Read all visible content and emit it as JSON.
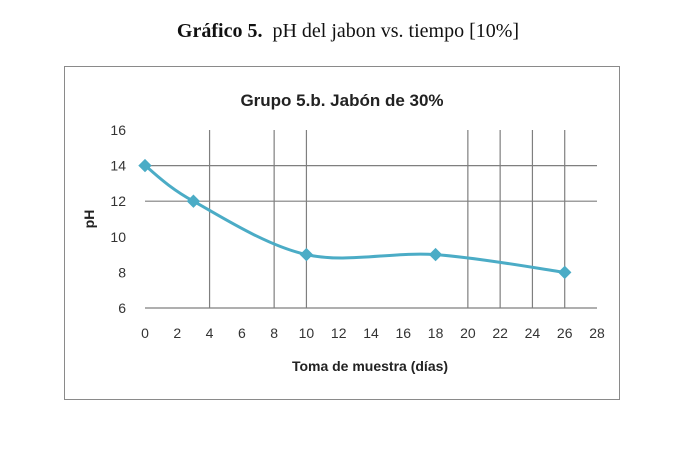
{
  "caption": {
    "bold": "Gráfico 5.",
    "text": "pH del jabon vs. tiempo [10%]"
  },
  "chart_data": {
    "type": "line",
    "title": "Grupo 5.b. Jabón de 30%",
    "xlabel": "Toma de muestra (días)",
    "ylabel": "pH",
    "xlim": [
      0,
      28
    ],
    "ylim": [
      6,
      16
    ],
    "xticks": [
      0,
      2,
      4,
      6,
      8,
      10,
      12,
      14,
      16,
      18,
      20,
      22,
      24,
      26,
      28
    ],
    "yticks": [
      6,
      8,
      10,
      12,
      14,
      16
    ],
    "vertical_gridlines_x": [
      4,
      8,
      10,
      20,
      22,
      24,
      26
    ],
    "horizontal_gridlines_y": [
      12,
      14
    ],
    "grid": true,
    "legend": false,
    "series": [
      {
        "color": "#4bacc6",
        "marker": "diamond",
        "smooth": true,
        "x": [
          0,
          3,
          10,
          18,
          26
        ],
        "y": [
          14,
          12,
          9,
          9,
          8
        ]
      }
    ]
  }
}
